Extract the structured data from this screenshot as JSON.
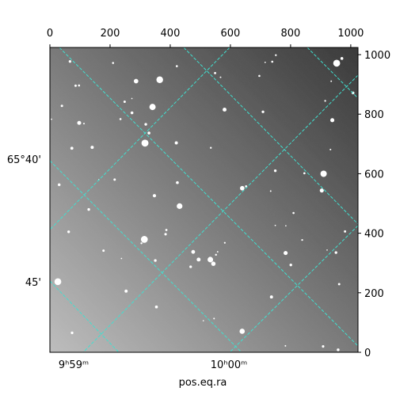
{
  "chart_data": {
    "type": "image",
    "xlabel": "pos.eq.ra",
    "xlim": [
      0,
      1024
    ],
    "ylim": [
      0,
      1024
    ],
    "xticks": [
      0,
      200,
      400,
      600,
      800,
      1000
    ],
    "yticks": [
      0,
      200,
      400,
      600,
      800,
      1000
    ],
    "ra_ticks": [
      "9ʰ59ᵐ",
      "10ʰ00ᵐ"
    ],
    "dec_ticks": [
      "65°40'",
      "45'"
    ],
    "grid_color": "#40e0d0"
  }
}
